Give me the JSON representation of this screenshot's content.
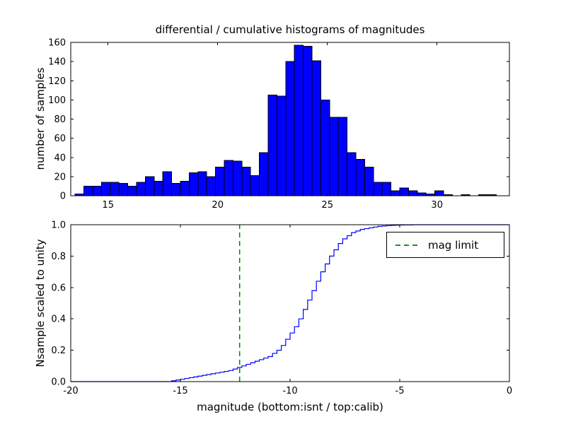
{
  "figure": {
    "title": "differential / cumulative histograms of magnitudes",
    "xlabel": "magnitude (bottom:isnt / top:calib)",
    "top_ylabel": "number of samples",
    "bottom_ylabel": "Nsample scaled to unity",
    "legend_label": "mag limit",
    "colors": {
      "hist_fill": "#0000ff",
      "hist_edge": "#000000",
      "cdf_line": "#0000ff",
      "mag_limit_line": "#008000",
      "axis": "#000000",
      "background": "#ffffff"
    }
  },
  "chart_data": [
    {
      "type": "bar",
      "subtype": "histogram",
      "title": "differential / cumulative histograms of magnitudes",
      "ylabel": "number of samples",
      "xlim": [
        13.3,
        33.3
      ],
      "ylim": [
        0,
        160
      ],
      "xticks": [
        15,
        20,
        25,
        30
      ],
      "yticks": [
        0,
        20,
        40,
        60,
        80,
        100,
        120,
        140,
        160
      ],
      "grid": false,
      "bin_start": 13.5,
      "bin_width": 0.4,
      "values": [
        2,
        10,
        10,
        14,
        14,
        13,
        10,
        14,
        20,
        15,
        25,
        13,
        15,
        24,
        25,
        20,
        30,
        37,
        36,
        30,
        21,
        45,
        105,
        104,
        140,
        157,
        156,
        141,
        100,
        82,
        82,
        45,
        38,
        30,
        14,
        14,
        5,
        8,
        5,
        3,
        2,
        5,
        1,
        0,
        1,
        0,
        1,
        1
      ]
    },
    {
      "type": "line",
      "subtype": "cumulative-step",
      "ylabel": "Nsample scaled to unity",
      "xlabel": "magnitude (bottom:isnt / top:calib)",
      "xlim": [
        -20,
        0
      ],
      "ylim": [
        0.0,
        1.0
      ],
      "xticks": [
        -20,
        -15,
        -10,
        -5,
        0
      ],
      "yticks": [
        0.0,
        0.2,
        0.4,
        0.6,
        0.8,
        1.0
      ],
      "grid": false,
      "legend_position": "upper right",
      "legend_entries": [
        "mag limit"
      ],
      "vline": {
        "x": -12.3,
        "label": "mag limit",
        "color": "#008000",
        "style": "dashed"
      },
      "x": [
        -20,
        -15.6,
        -15.4,
        -15.2,
        -15.0,
        -14.8,
        -14.6,
        -14.4,
        -14.2,
        -14.0,
        -13.8,
        -13.6,
        -13.4,
        -13.2,
        -13.0,
        -12.8,
        -12.6,
        -12.4,
        -12.2,
        -12.0,
        -11.8,
        -11.6,
        -11.4,
        -11.2,
        -11.0,
        -10.8,
        -10.6,
        -10.4,
        -10.2,
        -10.0,
        -9.8,
        -9.6,
        -9.4,
        -9.2,
        -9.0,
        -8.8,
        -8.6,
        -8.4,
        -8.2,
        -8.0,
        -7.8,
        -7.6,
        -7.4,
        -7.2,
        -7.0,
        -6.8,
        -6.6,
        -6.4,
        -6.2,
        -6.0,
        -5.8,
        -5.6,
        -5.4,
        -5.2,
        -5.0,
        -4.8,
        -4.6,
        -4.4,
        0
      ],
      "y": [
        0,
        0,
        0.005,
        0.01,
        0.015,
        0.02,
        0.025,
        0.03,
        0.035,
        0.04,
        0.045,
        0.05,
        0.055,
        0.06,
        0.065,
        0.07,
        0.08,
        0.09,
        0.1,
        0.11,
        0.12,
        0.13,
        0.14,
        0.15,
        0.16,
        0.18,
        0.2,
        0.23,
        0.27,
        0.31,
        0.35,
        0.4,
        0.46,
        0.52,
        0.58,
        0.64,
        0.7,
        0.75,
        0.8,
        0.84,
        0.88,
        0.91,
        0.93,
        0.95,
        0.96,
        0.97,
        0.975,
        0.98,
        0.985,
        0.99,
        0.992,
        0.994,
        0.996,
        0.997,
        0.998,
        0.999,
        0.999,
        1.0,
        1.0
      ]
    }
  ]
}
